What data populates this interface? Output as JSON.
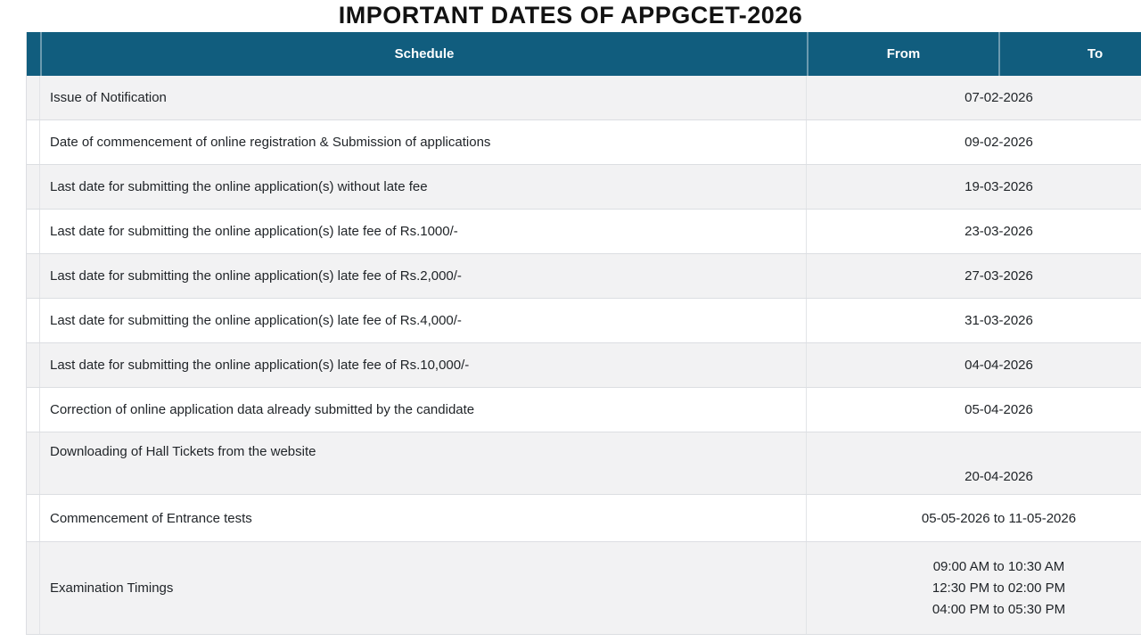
{
  "page": {
    "title": "IMPORTANT DATES OF APPGCET-2026"
  },
  "table": {
    "headers": {
      "schedule": "Schedule",
      "from": "From",
      "to": "To"
    },
    "rows": [
      {
        "schedule": "Issue of Notification",
        "dates": [
          "07-02-2026"
        ]
      },
      {
        "schedule": "Date of commencement of online registration & Submission of applications",
        "dates": [
          "09-02-2026"
        ]
      },
      {
        "schedule": "Last date for submitting the online application(s) without late fee",
        "dates": [
          "19-03-2026"
        ]
      },
      {
        "schedule": "Last date for submitting the online application(s) late fee of Rs.1000/-",
        "dates": [
          "23-03-2026"
        ]
      },
      {
        "schedule": "Last date for submitting the online application(s) late fee of Rs.2,000/-",
        "dates": [
          "27-03-2026"
        ]
      },
      {
        "schedule": "Last date for submitting the online application(s) late fee of Rs.4,000/-",
        "dates": [
          "31-03-2026"
        ]
      },
      {
        "schedule": "Last date for submitting the online application(s) late fee of Rs.10,000/-",
        "dates": [
          "04-04-2026"
        ]
      },
      {
        "schedule": "Correction of online application data already submitted by the candidate",
        "dates": [
          "05-04-2026"
        ]
      },
      {
        "schedule": "Downloading of Hall Tickets from the website",
        "dates": [
          "20-04-2026"
        ]
      },
      {
        "schedule": "Commencement of Entrance tests",
        "dates": [
          "05-05-2026 to 11-05-2026"
        ]
      },
      {
        "schedule": "Examination Timings",
        "dates": [
          "09:00 AM to 10:30 AM",
          "12:30 PM to 02:00 PM",
          "04:00 PM to 05:30 PM"
        ]
      }
    ]
  },
  "colors": {
    "header_bg": "#115d7e",
    "header_text": "#ffffff",
    "row_alt_bg": "#f2f2f3",
    "row_bg": "#ffffff",
    "row_border": "#dcdee2",
    "title_text": "#121212",
    "body_text": "#212529"
  }
}
